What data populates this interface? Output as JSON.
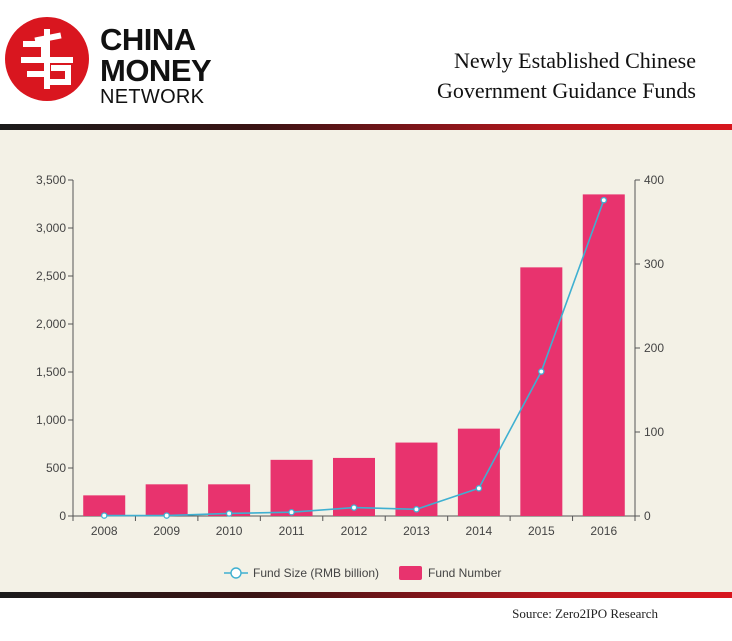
{
  "brand": {
    "line1": "CHINA",
    "line2": "MONEY",
    "line3": "NETWORK"
  },
  "title": {
    "line1": "Newly Established Chinese",
    "line2": "Government Guidance Funds"
  },
  "source": "Source: Zero2IPO Research",
  "colors": {
    "bar": "#e8336e",
    "line": "#3fb0d1",
    "axis": "#555555",
    "brand_red": "#d9161f"
  },
  "chart_data": {
    "type": "bar",
    "categories": [
      "2008",
      "2009",
      "2010",
      "2011",
      "2012",
      "2013",
      "2014",
      "2015",
      "2016"
    ],
    "left_axis": {
      "ticks": [
        "0",
        "500",
        "1,000",
        "1,500",
        "2,000",
        "2,500",
        "3,000",
        "3,500"
      ],
      "ylim": [
        0,
        3500
      ]
    },
    "right_axis": {
      "ticks": [
        "0",
        "100",
        "200",
        "300",
        "400"
      ],
      "ylim": [
        0,
        400
      ]
    },
    "series": [
      {
        "name": "Fund Number",
        "type": "bar",
        "axis": "left",
        "values": [
          215,
          330,
          330,
          585,
          605,
          765,
          910,
          2590,
          3350
        ]
      },
      {
        "name": "Fund Size (RMB billion)",
        "type": "line",
        "axis": "right",
        "values": [
          0.5,
          0.5,
          3,
          4.5,
          10,
          8,
          33,
          172,
          376
        ]
      }
    ],
    "legend": {
      "position": "bottom-center",
      "labels": [
        "Fund Size (RMB billion)",
        "Fund Number"
      ]
    }
  }
}
